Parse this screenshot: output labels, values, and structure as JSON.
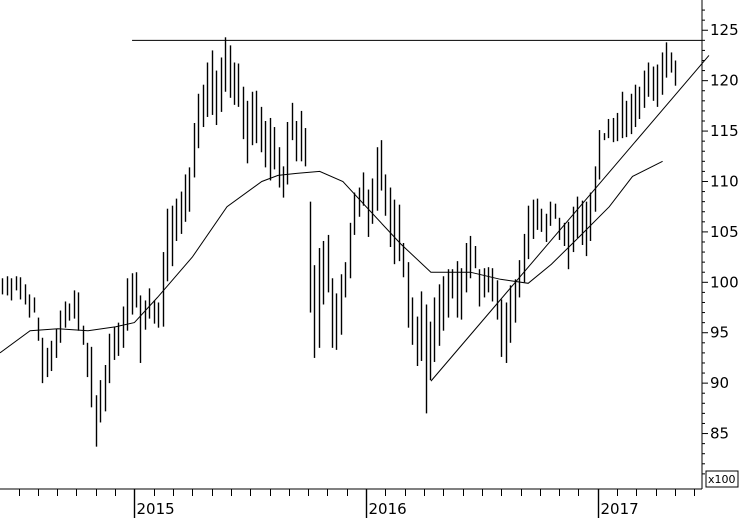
{
  "chart_data": {
    "type": "ohlc",
    "title": "",
    "xlabel": "",
    "ylabel": "",
    "scale_label": "x100",
    "ylim": [
      79.5,
      128
    ],
    "y_ticks": [
      85,
      90,
      95,
      100,
      105,
      110,
      115,
      120,
      125
    ],
    "x_ticks": [
      {
        "label": "2015",
        "x": 2015.0
      },
      {
        "label": "2016",
        "x": 2016.0
      },
      {
        "label": "2017",
        "x": 2017.0
      }
    ],
    "xlim": [
      2014.42,
      2017.45
    ],
    "grid": false,
    "weekly_bars": {
      "start": 2014.43,
      "step_weeks": 1,
      "ranges": [
        [
          98.8,
          100.4
        ],
        [
          98.7,
          100.6
        ],
        [
          98.2,
          100.4
        ],
        [
          99.2,
          100.6
        ],
        [
          98.3,
          100.5
        ],
        [
          97.8,
          99.8
        ],
        [
          96.5,
          98.8
        ],
        [
          97.0,
          98.5
        ],
        [
          94.2,
          96.5
        ],
        [
          90.0,
          94.5
        ],
        [
          90.6,
          93.5
        ],
        [
          91.2,
          94.2
        ],
        [
          92.5,
          95.4
        ],
        [
          94.0,
          97.2
        ],
        [
          95.5,
          98.1
        ],
        [
          96.2,
          97.9
        ],
        [
          96.4,
          99.2
        ],
        [
          95.2,
          99.0
        ],
        [
          93.8,
          95.7
        ],
        [
          90.6,
          94.0
        ],
        [
          87.6,
          93.6
        ],
        [
          83.7,
          88.8
        ],
        [
          86.1,
          90.3
        ],
        [
          87.2,
          91.8
        ],
        [
          90.0,
          94.9
        ],
        [
          92.3,
          95.6
        ],
        [
          92.7,
          96.0
        ],
        [
          93.5,
          97.6
        ],
        [
          95.2,
          100.4
        ],
        [
          96.8,
          100.9
        ],
        [
          97.5,
          101.0
        ],
        [
          92.0,
          98.7
        ],
        [
          95.3,
          98.2
        ],
        [
          96.4,
          99.4
        ],
        [
          95.9,
          98.2
        ],
        [
          95.5,
          98.0
        ],
        [
          95.6,
          103.0
        ],
        [
          100.1,
          107.3
        ],
        [
          101.6,
          107.6
        ],
        [
          104.1,
          108.3
        ],
        [
          104.8,
          109.0
        ],
        [
          106.0,
          110.7
        ],
        [
          107.0,
          111.4
        ],
        [
          110.4,
          115.8
        ],
        [
          113.3,
          118.7
        ],
        [
          115.4,
          119.6
        ],
        [
          116.4,
          121.8
        ],
        [
          116.6,
          123.0
        ],
        [
          115.6,
          121.0
        ],
        [
          116.9,
          122.3
        ],
        [
          118.9,
          124.3
        ],
        [
          118.3,
          123.5
        ],
        [
          117.6,
          121.8
        ],
        [
          117.4,
          121.7
        ],
        [
          114.2,
          119.4
        ],
        [
          111.8,
          118.0
        ],
        [
          113.6,
          118.9
        ],
        [
          113.8,
          119.0
        ],
        [
          112.9,
          117.4
        ],
        [
          111.4,
          116.0
        ],
        [
          110.1,
          116.3
        ],
        [
          111.2,
          115.4
        ],
        [
          109.4,
          113.4
        ],
        [
          108.4,
          111.5
        ],
        [
          109.7,
          115.9
        ],
        [
          114.1,
          117.8
        ],
        [
          112.0,
          116.0
        ],
        [
          112.0,
          117.0
        ],
        [
          111.5,
          115.3
        ],
        [
          97.0,
          108.0
        ],
        [
          92.5,
          101.7
        ],
        [
          93.5,
          103.4
        ],
        [
          97.8,
          104.1
        ],
        [
          99.0,
          104.7
        ],
        [
          93.5,
          100.4
        ],
        [
          93.3,
          98.9
        ],
        [
          94.8,
          100.8
        ],
        [
          98.5,
          102.0
        ],
        [
          100.4,
          105.9
        ],
        [
          104.7,
          108.9
        ],
        [
          106.5,
          109.4
        ],
        [
          107.6,
          110.9
        ],
        [
          104.5,
          109.2
        ],
        [
          105.8,
          110.3
        ],
        [
          107.1,
          113.4
        ],
        [
          109.1,
          114.1
        ],
        [
          106.6,
          110.7
        ],
        [
          103.5,
          109.4
        ],
        [
          101.8,
          108.2
        ],
        [
          102.1,
          107.7
        ],
        [
          100.5,
          103.9
        ],
        [
          95.5,
          102.0
        ],
        [
          93.8,
          98.5
        ],
        [
          91.7,
          96.6
        ],
        [
          92.2,
          99.1
        ],
        [
          87.0,
          97.8
        ],
        [
          90.3,
          96.1
        ],
        [
          92.1,
          98.5
        ],
        [
          93.7,
          99.8
        ],
        [
          95.2,
          100.6
        ],
        [
          96.5,
          101.3
        ],
        [
          98.4,
          101.3
        ],
        [
          96.5,
          102.1
        ],
        [
          96.3,
          101.4
        ],
        [
          99.0,
          103.9
        ],
        [
          100.4,
          104.6
        ],
        [
          101.4,
          103.6
        ],
        [
          97.6,
          101.3
        ],
        [
          98.5,
          101.4
        ],
        [
          99.0,
          101.5
        ],
        [
          98.1,
          101.4
        ],
        [
          96.3,
          100.2
        ],
        [
          92.6,
          98.3
        ],
        [
          92.0,
          98.0
        ],
        [
          94.0,
          99.7
        ],
        [
          96.0,
          100.3
        ],
        [
          98.5,
          102.2
        ],
        [
          100.0,
          104.8
        ],
        [
          102.3,
          107.6
        ],
        [
          104.3,
          108.2
        ],
        [
          105.2,
          108.3
        ],
        [
          105.0,
          107.3
        ],
        [
          104.0,
          106.8
        ],
        [
          105.6,
          108.0
        ],
        [
          106.3,
          107.8
        ],
        [
          104.2,
          106.4
        ],
        [
          103.6,
          105.9
        ],
        [
          101.3,
          106.0
        ],
        [
          103.0,
          107.5
        ],
        [
          104.4,
          108.5
        ],
        [
          103.7,
          108.1
        ],
        [
          102.6,
          108.0
        ],
        [
          104.1,
          108.9
        ],
        [
          107.0,
          111.5
        ],
        [
          110.2,
          115.1
        ],
        [
          114.1,
          114.8
        ],
        [
          114.3,
          116.2
        ],
        [
          113.9,
          116.3
        ],
        [
          114.0,
          116.8
        ],
        [
          114.3,
          118.9
        ],
        [
          114.4,
          118.0
        ],
        [
          114.7,
          118.7
        ],
        [
          115.4,
          119.6
        ],
        [
          116.2,
          119.4
        ],
        [
          117.3,
          121.0
        ],
        [
          118.4,
          121.8
        ],
        [
          118.0,
          121.4
        ],
        [
          117.4,
          121.6
        ],
        [
          118.6,
          122.8
        ],
        [
          120.3,
          123.8
        ],
        [
          120.8,
          122.8
        ],
        [
          119.5,
          122.0
        ]
      ]
    },
    "moving_average": [
      [
        2014.42,
        93.0
      ],
      [
        2014.55,
        95.2
      ],
      [
        2014.67,
        95.4
      ],
      [
        2014.8,
        95.2
      ],
      [
        2014.92,
        95.6
      ],
      [
        2015.0,
        96.0
      ],
      [
        2015.1,
        98.5
      ],
      [
        2015.25,
        102.5
      ],
      [
        2015.4,
        107.5
      ],
      [
        2015.55,
        110.0
      ],
      [
        2015.62,
        110.6
      ],
      [
        2015.7,
        110.8
      ],
      [
        2015.8,
        111.0
      ],
      [
        2015.9,
        110.0
      ],
      [
        2016.0,
        107.5
      ],
      [
        2016.15,
        103.8
      ],
      [
        2016.28,
        101.0
      ],
      [
        2016.45,
        101.0
      ],
      [
        2016.58,
        100.3
      ],
      [
        2016.7,
        99.9
      ],
      [
        2016.8,
        101.8
      ],
      [
        2016.92,
        104.5
      ],
      [
        2017.05,
        107.5
      ],
      [
        2017.15,
        110.5
      ],
      [
        2017.28,
        112.0
      ]
    ],
    "annotations": [
      {
        "type": "horizontal-line",
        "y": 124.0,
        "x_from": 2014.99,
        "x_to": 2017.45
      },
      {
        "type": "trend-line",
        "from": [
          2016.28,
          90.2
        ],
        "to": [
          2017.48,
          122.5
        ]
      }
    ]
  }
}
